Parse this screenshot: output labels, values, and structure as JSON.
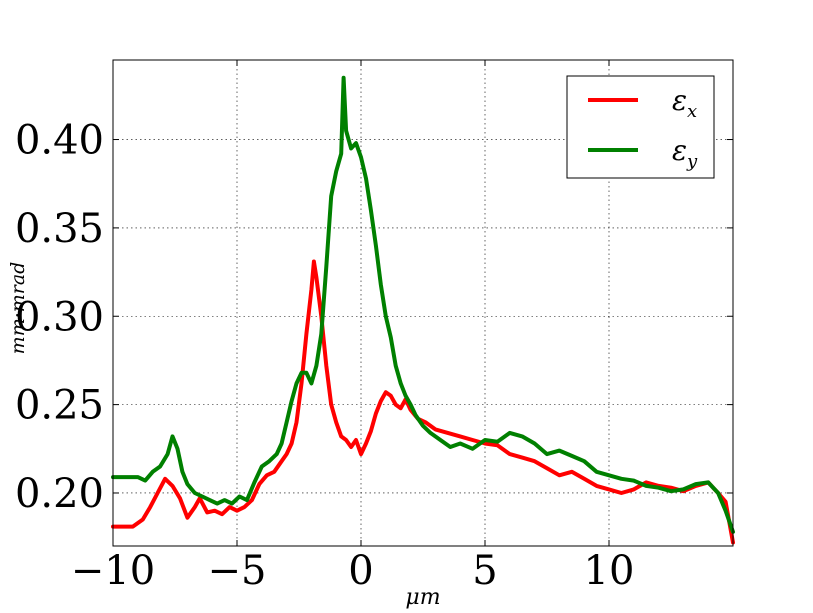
{
  "chart_data": {
    "type": "line",
    "title": "",
    "xlabel": "μm",
    "ylabel": "mm·mrad",
    "xlim": [
      -10,
      15
    ],
    "ylim": [
      0.17,
      0.445
    ],
    "xticks": [
      -10,
      -5,
      0,
      5,
      10
    ],
    "yticks": [
      0.2,
      0.25,
      0.3,
      0.35,
      0.4
    ],
    "xtick_labels": [
      "−10",
      "−5",
      "0",
      "5",
      "10"
    ],
    "ytick_labels": [
      "0.20",
      "0.25",
      "0.30",
      "0.35",
      "0.40"
    ],
    "grid": true,
    "legend_position": "top-right",
    "legend": {
      "series_names": [
        "ε",
        "ε"
      ],
      "subscripts": [
        "x",
        "y"
      ]
    },
    "series": [
      {
        "name": "εx",
        "color": "#ff0000",
        "x": [
          -10,
          -9.2,
          -8.8,
          -8.5,
          -8.2,
          -7.9,
          -7.6,
          -7.3,
          -7.0,
          -6.7,
          -6.5,
          -6.2,
          -5.9,
          -5.6,
          -5.3,
          -5.0,
          -4.7,
          -4.4,
          -4.1,
          -3.8,
          -3.5,
          -3.2,
          -3.0,
          -2.8,
          -2.6,
          -2.4,
          -2.2,
          -2.0,
          -1.9,
          -1.8,
          -1.6,
          -1.4,
          -1.2,
          -1.0,
          -0.8,
          -0.6,
          -0.4,
          -0.2,
          0.0,
          0.2,
          0.4,
          0.6,
          0.8,
          1.0,
          1.2,
          1.4,
          1.6,
          1.8,
          2.0,
          2.3,
          2.6,
          3.0,
          3.5,
          4.0,
          4.5,
          5.0,
          5.5,
          6.0,
          6.5,
          7.0,
          7.5,
          8.0,
          8.5,
          9.0,
          9.5,
          10.0,
          10.5,
          11.0,
          11.5,
          12.0,
          12.5,
          13.0,
          13.5,
          14.0,
          14.4,
          14.7,
          15.0
        ],
        "y": [
          0.181,
          0.181,
          0.185,
          0.192,
          0.2,
          0.208,
          0.204,
          0.197,
          0.186,
          0.192,
          0.197,
          0.189,
          0.19,
          0.188,
          0.192,
          0.19,
          0.192,
          0.196,
          0.205,
          0.21,
          0.212,
          0.218,
          0.222,
          0.228,
          0.24,
          0.262,
          0.29,
          0.315,
          0.331,
          0.322,
          0.3,
          0.272,
          0.25,
          0.24,
          0.232,
          0.23,
          0.226,
          0.23,
          0.222,
          0.228,
          0.235,
          0.245,
          0.252,
          0.257,
          0.255,
          0.25,
          0.248,
          0.253,
          0.247,
          0.242,
          0.24,
          0.236,
          0.234,
          0.232,
          0.23,
          0.228,
          0.227,
          0.222,
          0.22,
          0.218,
          0.214,
          0.21,
          0.212,
          0.208,
          0.204,
          0.202,
          0.2,
          0.202,
          0.206,
          0.204,
          0.203,
          0.201,
          0.204,
          0.206,
          0.2,
          0.195,
          0.172
        ]
      },
      {
        "name": "εy",
        "color": "#008000",
        "x": [
          -10,
          -9.4,
          -9.0,
          -8.7,
          -8.4,
          -8.1,
          -7.8,
          -7.6,
          -7.4,
          -7.2,
          -7.0,
          -6.7,
          -6.4,
          -6.1,
          -5.8,
          -5.5,
          -5.2,
          -4.9,
          -4.6,
          -4.3,
          -4.0,
          -3.7,
          -3.4,
          -3.2,
          -3.0,
          -2.8,
          -2.6,
          -2.4,
          -2.2,
          -2.0,
          -1.8,
          -1.6,
          -1.4,
          -1.2,
          -1.0,
          -0.8,
          -0.7,
          -0.6,
          -0.4,
          -0.2,
          0.0,
          0.2,
          0.4,
          0.6,
          0.8,
          1.0,
          1.2,
          1.4,
          1.6,
          1.8,
          2.0,
          2.2,
          2.5,
          2.8,
          3.2,
          3.6,
          4.0,
          4.5,
          5.0,
          5.5,
          6.0,
          6.5,
          7.0,
          7.5,
          8.0,
          8.5,
          9.0,
          9.5,
          10.0,
          10.5,
          11.0,
          11.5,
          12.0,
          12.5,
          13.0,
          13.5,
          14.0,
          14.4,
          14.7,
          15.0
        ],
        "y": [
          0.209,
          0.209,
          0.209,
          0.207,
          0.212,
          0.215,
          0.222,
          0.232,
          0.225,
          0.212,
          0.205,
          0.2,
          0.198,
          0.196,
          0.194,
          0.196,
          0.194,
          0.198,
          0.196,
          0.206,
          0.215,
          0.218,
          0.222,
          0.228,
          0.24,
          0.252,
          0.262,
          0.268,
          0.268,
          0.262,
          0.272,
          0.29,
          0.328,
          0.368,
          0.382,
          0.392,
          0.435,
          0.405,
          0.395,
          0.398,
          0.39,
          0.378,
          0.36,
          0.34,
          0.318,
          0.3,
          0.288,
          0.272,
          0.262,
          0.255,
          0.25,
          0.244,
          0.238,
          0.234,
          0.23,
          0.226,
          0.228,
          0.225,
          0.23,
          0.229,
          0.234,
          0.232,
          0.228,
          0.222,
          0.224,
          0.221,
          0.218,
          0.212,
          0.21,
          0.208,
          0.207,
          0.204,
          0.203,
          0.201,
          0.202,
          0.205,
          0.206,
          0.2,
          0.19,
          0.178
        ]
      }
    ]
  }
}
